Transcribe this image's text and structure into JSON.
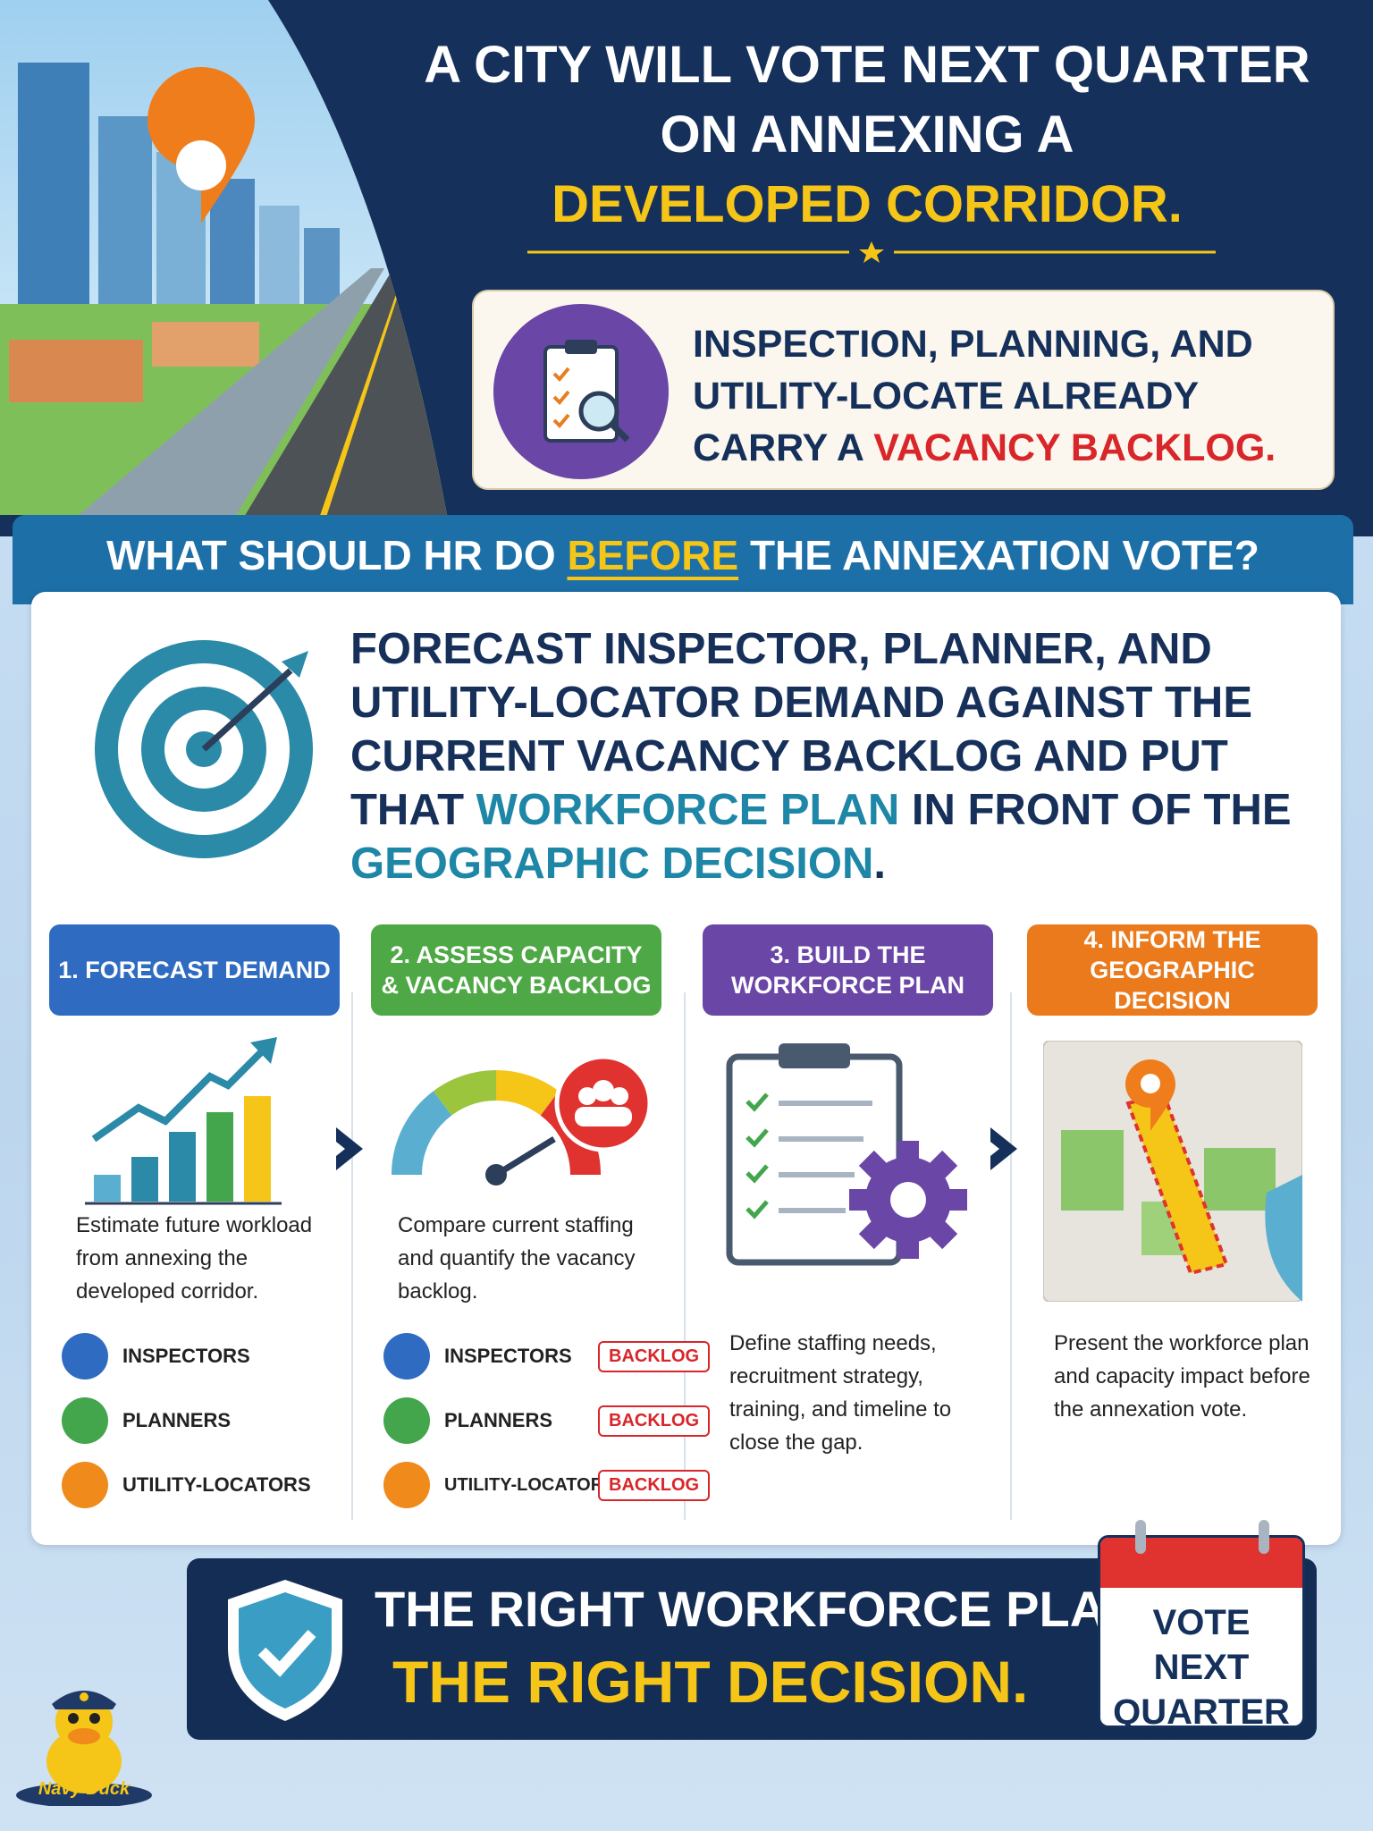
{
  "header": {
    "title": "A CITY WILL VOTE NEXT QUARTER ON ANNEXING A",
    "title_highlight": "DEVELOPED CORRIDOR."
  },
  "problem": {
    "text": "INSPECTION, PLANNING, AND UTILITY-LOCATE ALREADY CARRY A",
    "highlight": "VACANCY BACKLOG."
  },
  "question": {
    "before": "WHAT SHOULD HR DO",
    "emphasis": "BEFORE",
    "after": "THE ANNEXATION VOTE?"
  },
  "answer": {
    "parts": [
      "FORECAST INSPECTOR, PLANNER, AND UTILITY-LOCATOR DEMAND AGAINST THE CURRENT VACANCY BACKLOG AND PUT THAT",
      "WORKFORCE PLAN",
      "IN FRONT OF THE",
      "GEOGRAPHIC DECISION",
      "."
    ]
  },
  "steps": [
    {
      "title": "1. FORECAST DEMAND",
      "text": "Estimate future workload from annexing the developed corridor.",
      "roles": [
        {
          "name": "INSPECTORS"
        },
        {
          "name": "PLANNERS"
        },
        {
          "name": "UTILITY-LOCATORS"
        }
      ]
    },
    {
      "title": "2. ASSESS CAPACITY & VACANCY BACKLOG",
      "text": "Compare current staffing and quantify the vacancy backlog.",
      "roles": [
        {
          "name": "INSPECTORS",
          "status": "BACKLOG"
        },
        {
          "name": "PLANNERS",
          "status": "BACKLOG"
        },
        {
          "name": "UTILITY-LOCATORS",
          "status": "BACKLOG"
        }
      ]
    },
    {
      "title": "3. BUILD THE WORKFORCE PLAN",
      "text": "Define staffing needs, recruitment strategy, training, and timeline to close the gap."
    },
    {
      "title": "4. INFORM THE GEOGRAPHIC DECISION",
      "text": "Present the workforce plan and capacity impact before the annexation vote."
    }
  ],
  "footer": {
    "line1": "THE RIGHT WORKFORCE PLAN.",
    "line2": "THE RIGHT DECISION."
  },
  "calendar": {
    "text": "VOTE NEXT QUARTER"
  },
  "mascot": {
    "name": "Navy Duck"
  }
}
